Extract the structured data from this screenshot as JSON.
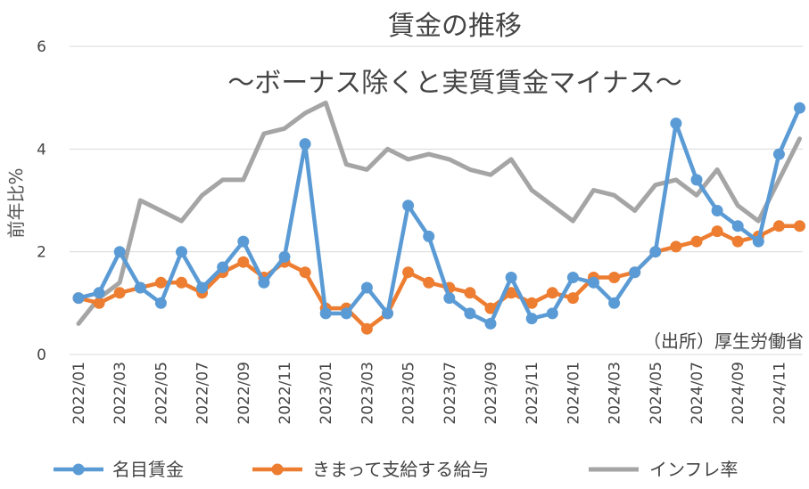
{
  "chart_data": {
    "type": "line",
    "title": "賃金の推移",
    "subtitle": "～ボーナス除くと実質賃金マイナス～",
    "ylabel": "前年比%",
    "source_note": "（出所）厚生労働省",
    "ylim": [
      0,
      6
    ],
    "yticks": [
      "0",
      "2",
      "4",
      "6"
    ],
    "grid": true,
    "legend_position": "bottom",
    "x": [
      "2022/01",
      "2022/02",
      "2022/03",
      "2022/04",
      "2022/05",
      "2022/06",
      "2022/07",
      "2022/08",
      "2022/09",
      "2022/10",
      "2022/11",
      "2022/12",
      "2023/01",
      "2023/02",
      "2023/03",
      "2023/04",
      "2023/05",
      "2023/06",
      "2023/07",
      "2023/08",
      "2023/09",
      "2023/10",
      "2023/11",
      "2023/12",
      "2024/01",
      "2024/02",
      "2024/03",
      "2024/04",
      "2024/05",
      "2024/06",
      "2024/07",
      "2024/08",
      "2024/09",
      "2024/10",
      "2024/11",
      "2024/12"
    ],
    "xtick_labels": [
      "2022/01",
      "2022/03",
      "2022/05",
      "2022/07",
      "2022/09",
      "2022/11",
      "2023/01",
      "2023/03",
      "2023/05",
      "2023/07",
      "2023/09",
      "2023/11",
      "2024/01",
      "2024/03",
      "2024/05",
      "2024/07",
      "2024/09",
      "2024/11"
    ],
    "series": [
      {
        "name": "名目賃金",
        "color": "#5B9BD5",
        "marker": true,
        "values": [
          1.1,
          1.2,
          2.0,
          1.3,
          1.0,
          2.0,
          1.3,
          1.7,
          2.2,
          1.4,
          1.9,
          4.1,
          0.8,
          0.8,
          1.3,
          0.8,
          2.9,
          2.3,
          1.1,
          0.8,
          0.6,
          1.5,
          0.7,
          0.8,
          1.5,
          1.4,
          1.0,
          1.6,
          2.0,
          4.5,
          3.4,
          2.8,
          2.5,
          2.2,
          3.9,
          4.8
        ]
      },
      {
        "name": "きまって支給する給与",
        "color": "#ED7D31",
        "marker": true,
        "values": [
          1.1,
          1.0,
          1.2,
          1.3,
          1.4,
          1.4,
          1.2,
          1.6,
          1.8,
          1.5,
          1.8,
          1.6,
          0.9,
          0.9,
          0.5,
          0.8,
          1.6,
          1.4,
          1.3,
          1.2,
          0.9,
          1.2,
          1.0,
          1.2,
          1.1,
          1.5,
          1.5,
          1.6,
          2.0,
          2.1,
          2.2,
          2.4,
          2.2,
          2.3,
          2.5,
          2.5
        ]
      },
      {
        "name": "インフレ率",
        "color": "#A5A5A5",
        "marker": false,
        "values": [
          0.6,
          1.1,
          1.4,
          3.0,
          2.8,
          2.6,
          3.1,
          3.4,
          3.4,
          4.3,
          4.4,
          4.7,
          4.9,
          3.7,
          3.6,
          4.0,
          3.8,
          3.9,
          3.8,
          3.6,
          3.5,
          3.8,
          3.2,
          2.9,
          2.6,
          3.2,
          3.1,
          2.8,
          3.3,
          3.4,
          3.1,
          3.6,
          2.9,
          2.6,
          3.4,
          4.2
        ]
      }
    ]
  }
}
